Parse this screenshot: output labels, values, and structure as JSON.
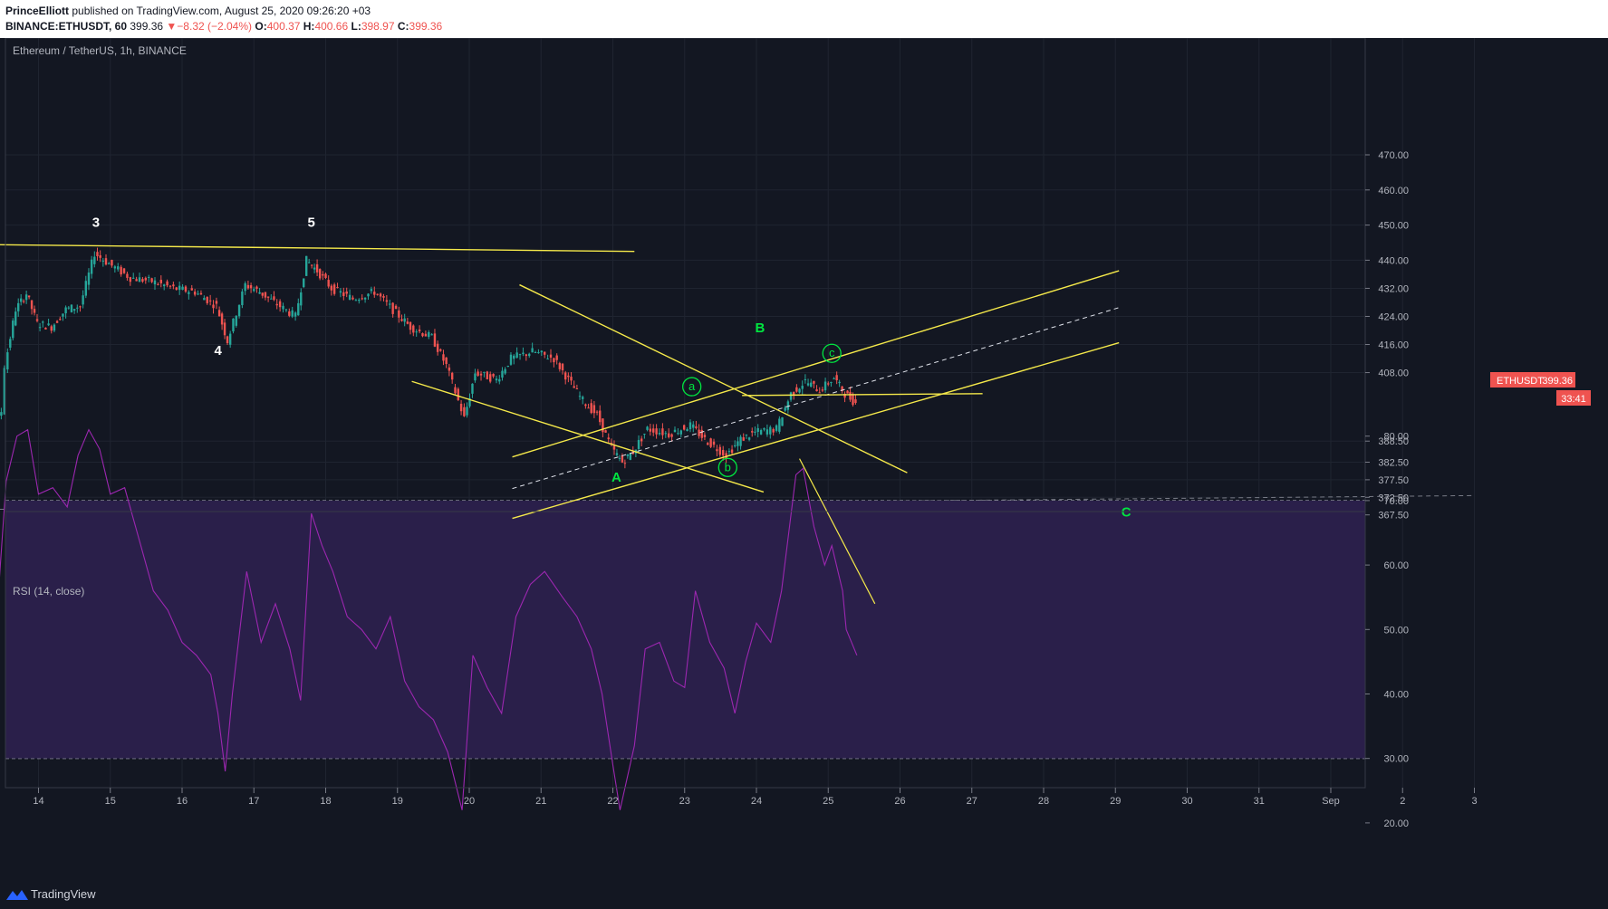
{
  "header": {
    "author": "PrinceElliott",
    "published_text": "published on TradingView.com, August 25, 2020 09:26:20 +03",
    "symbol": "BINANCE:ETHUSDT, 60",
    "last": "399.36",
    "change": "−8.32 (−2.04%)",
    "o_label": "O:",
    "o_val": "400.37",
    "h_label": "H:",
    "h_val": "400.66",
    "l_label": "L:",
    "l_val": "398.97",
    "c_label": "C:",
    "c_val": "399.36"
  },
  "chart_data": [
    {
      "type": "candlestick",
      "title": "Ethereum / TetherUS, 1h, BINANCE",
      "x_ticks": [
        "14",
        "15",
        "16",
        "17",
        "18",
        "19",
        "20",
        "21",
        "22",
        "23",
        "24",
        "25",
        "26",
        "27",
        "28",
        "29",
        "30",
        "31",
        "Sep",
        "2",
        "3"
      ],
      "y_ticks": [
        "470.00",
        "460.00",
        "450.00",
        "440.00",
        "432.00",
        "424.00",
        "416.00",
        "408.00",
        "388.50",
        "382.50",
        "377.50",
        "372.50",
        "367.50"
      ],
      "price_label": "ETHUSDT",
      "price_value": "399.36",
      "countdown": "33:41",
      "wave_labels": [
        {
          "text": "3",
          "date": "14.8",
          "price": 449.5,
          "color": "#ffffff"
        },
        {
          "text": "5",
          "date": "17.8",
          "price": 449.5,
          "color": "#ffffff"
        },
        {
          "text": "4",
          "date": "16.5",
          "price": 413.0,
          "color": "#ffffff"
        },
        {
          "text": "B",
          "date": "24.05",
          "price": 419.5,
          "color": "#00e640"
        },
        {
          "text": "A",
          "date": "22.05",
          "price": 377.0,
          "color": "#00e640"
        },
        {
          "text": "C",
          "date": "29.15",
          "price": 367.0,
          "color": "#00e640"
        }
      ],
      "circled_labels": [
        {
          "text": "a",
          "date": "23.1",
          "price": 404.0
        },
        {
          "text": "b",
          "date": "23.6",
          "price": 381.0
        },
        {
          "text": "c",
          "date": "25.05",
          "price": 413.5
        }
      ],
      "price_path": [
        {
          "date": "13.0",
          "price": 378.5
        },
        {
          "date": "13.05",
          "price": 386.0
        },
        {
          "date": "13.2",
          "price": 392.0
        },
        {
          "date": "13.35",
          "price": 391.0
        },
        {
          "date": "13.5",
          "price": 397.0
        },
        {
          "date": "13.55",
          "price": 410.0
        },
        {
          "date": "13.7",
          "price": 426.0
        },
        {
          "date": "13.85",
          "price": 430.5
        },
        {
          "date": "14.0",
          "price": 422.0
        },
        {
          "date": "14.2",
          "price": 421.0
        },
        {
          "date": "14.4",
          "price": 426.0
        },
        {
          "date": "14.6",
          "price": 427.0
        },
        {
          "date": "14.8",
          "price": 442.0
        },
        {
          "date": "15.0",
          "price": 439.0
        },
        {
          "date": "15.3",
          "price": 435.0
        },
        {
          "date": "15.6",
          "price": 434.0
        },
        {
          "date": "15.9",
          "price": 432.0
        },
        {
          "date": "16.2",
          "price": 431.0
        },
        {
          "date": "16.5",
          "price": 427.0
        },
        {
          "date": "16.65",
          "price": 417.0
        },
        {
          "date": "16.9",
          "price": 433.0
        },
        {
          "date": "17.1",
          "price": 431.0
        },
        {
          "date": "17.3",
          "price": 428.0
        },
        {
          "date": "17.6",
          "price": 424.0
        },
        {
          "date": "17.75",
          "price": 440.0
        },
        {
          "date": "17.9",
          "price": 437.0
        },
        {
          "date": "18.1",
          "price": 432.0
        },
        {
          "date": "18.4",
          "price": 429.0
        },
        {
          "date": "18.7",
          "price": 431.0
        },
        {
          "date": "19.0",
          "price": 425.0
        },
        {
          "date": "19.2",
          "price": 421.0
        },
        {
          "date": "19.5",
          "price": 418.0
        },
        {
          "date": "19.7",
          "price": 410.0
        },
        {
          "date": "19.95",
          "price": 395.0
        },
        {
          "date": "20.1",
          "price": 408.0
        },
        {
          "date": "20.4",
          "price": 406.0
        },
        {
          "date": "20.6",
          "price": 412.0
        },
        {
          "date": "20.9",
          "price": 414.0
        },
        {
          "date": "21.2",
          "price": 412.0
        },
        {
          "date": "21.4",
          "price": 406.0
        },
        {
          "date": "21.6",
          "price": 400.0
        },
        {
          "date": "21.8",
          "price": 396.0
        },
        {
          "date": "22.0",
          "price": 386.5
        },
        {
          "date": "22.15",
          "price": 382.5
        },
        {
          "date": "22.3",
          "price": 385.5
        },
        {
          "date": "22.5",
          "price": 392.0
        },
        {
          "date": "22.8",
          "price": 390.5
        },
        {
          "date": "23.1",
          "price": 393.0
        },
        {
          "date": "23.3",
          "price": 389.0
        },
        {
          "date": "23.6",
          "price": 384.5
        },
        {
          "date": "23.8",
          "price": 389.0
        },
        {
          "date": "24.0",
          "price": 391.0
        },
        {
          "date": "24.3",
          "price": 392.0
        },
        {
          "date": "24.5",
          "price": 402.0
        },
        {
          "date": "24.7",
          "price": 405.5
        },
        {
          "date": "24.9",
          "price": 403.0
        },
        {
          "date": "25.1",
          "price": 406.5
        },
        {
          "date": "25.25",
          "price": 402.0
        },
        {
          "date": "25.4",
          "price": 399.36
        }
      ],
      "trendlines": [
        {
          "from": {
            "date": "13.0",
            "price": 444.5
          },
          "to": {
            "date": "22.3",
            "price": 442.5
          },
          "style": "solid"
        },
        {
          "from": {
            "date": "20.7",
            "price": 433.0
          },
          "to": {
            "date": "26.1",
            "price": 379.5
          },
          "style": "solid"
        },
        {
          "from": {
            "date": "19.2",
            "price": 405.5
          },
          "to": {
            "date": "24.1",
            "price": 374.0
          },
          "style": "solid"
        },
        {
          "from": {
            "date": "20.6",
            "price": 384.0
          },
          "to": {
            "date": "29.05",
            "price": 437.0
          },
          "style": "solid"
        },
        {
          "from": {
            "date": "20.6",
            "price": 375.0
          },
          "to": {
            "date": "29.05",
            "price": 426.5
          },
          "style": "dashed"
        },
        {
          "from": {
            "date": "20.6",
            "price": 366.5
          },
          "to": {
            "date": "29.05",
            "price": 416.5
          },
          "style": "solid"
        },
        {
          "from": {
            "date": "23.8",
            "price": 401.5
          },
          "to": {
            "date": "27.15",
            "price": 402.0
          },
          "style": "solid"
        }
      ],
      "support_line": {
        "from": {
          "date": "13.0",
          "price": 369.0
        },
        "to": {
          "date": "34.0",
          "price": 373.0
        }
      }
    },
    {
      "type": "line",
      "title": "RSI (14, close)",
      "y_ticks": [
        "80.00",
        "70.00",
        "60.00",
        "50.00",
        "40.00",
        "30.00",
        "20.00"
      ],
      "band": [
        30,
        70
      ],
      "series": [
        {
          "values": [
            {
              "date": "13.0",
              "rsi": 48
            },
            {
              "date": "13.15",
              "rsi": 60
            },
            {
              "date": "13.3",
              "rsi": 55
            },
            {
              "date": "13.45",
              "rsi": 57
            },
            {
              "date": "13.55",
              "rsi": 73
            },
            {
              "date": "13.7",
              "rsi": 80
            },
            {
              "date": "13.85",
              "rsi": 81
            },
            {
              "date": "14.0",
              "rsi": 71
            },
            {
              "date": "14.2",
              "rsi": 72
            },
            {
              "date": "14.4",
              "rsi": 69
            },
            {
              "date": "14.55",
              "rsi": 77
            },
            {
              "date": "14.7",
              "rsi": 81
            },
            {
              "date": "14.85",
              "rsi": 78
            },
            {
              "date": "15.0",
              "rsi": 71
            },
            {
              "date": "15.2",
              "rsi": 72
            },
            {
              "date": "15.4",
              "rsi": 64
            },
            {
              "date": "15.6",
              "rsi": 56
            },
            {
              "date": "15.8",
              "rsi": 53
            },
            {
              "date": "16.0",
              "rsi": 48
            },
            {
              "date": "16.2",
              "rsi": 46
            },
            {
              "date": "16.4",
              "rsi": 43
            },
            {
              "date": "16.5",
              "rsi": 37
            },
            {
              "date": "16.6",
              "rsi": 28
            },
            {
              "date": "16.7",
              "rsi": 40
            },
            {
              "date": "16.9",
              "rsi": 59
            },
            {
              "date": "17.1",
              "rsi": 48
            },
            {
              "date": "17.3",
              "rsi": 54
            },
            {
              "date": "17.5",
              "rsi": 47
            },
            {
              "date": "17.65",
              "rsi": 39
            },
            {
              "date": "17.8",
              "rsi": 68
            },
            {
              "date": "17.95",
              "rsi": 63
            },
            {
              "date": "18.1",
              "rsi": 59
            },
            {
              "date": "18.3",
              "rsi": 52
            },
            {
              "date": "18.5",
              "rsi": 50
            },
            {
              "date": "18.7",
              "rsi": 47
            },
            {
              "date": "18.9",
              "rsi": 52
            },
            {
              "date": "19.1",
              "rsi": 42
            },
            {
              "date": "19.3",
              "rsi": 38
            },
            {
              "date": "19.5",
              "rsi": 36
            },
            {
              "date": "19.7",
              "rsi": 31
            },
            {
              "date": "19.9",
              "rsi": 22
            },
            {
              "date": "20.05",
              "rsi": 46
            },
            {
              "date": "20.25",
              "rsi": 41
            },
            {
              "date": "20.45",
              "rsi": 37
            },
            {
              "date": "20.65",
              "rsi": 52
            },
            {
              "date": "20.85",
              "rsi": 57
            },
            {
              "date": "21.05",
              "rsi": 59
            },
            {
              "date": "21.3",
              "rsi": 55
            },
            {
              "date": "21.5",
              "rsi": 52
            },
            {
              "date": "21.7",
              "rsi": 47
            },
            {
              "date": "21.85",
              "rsi": 40
            },
            {
              "date": "22.0",
              "rsi": 29
            },
            {
              "date": "22.1",
              "rsi": 22
            },
            {
              "date": "22.3",
              "rsi": 32
            },
            {
              "date": "22.45",
              "rsi": 47
            },
            {
              "date": "22.65",
              "rsi": 48
            },
            {
              "date": "22.85",
              "rsi": 42
            },
            {
              "date": "23.0",
              "rsi": 41
            },
            {
              "date": "23.15",
              "rsi": 56
            },
            {
              "date": "23.35",
              "rsi": 48
            },
            {
              "date": "23.55",
              "rsi": 44
            },
            {
              "date": "23.7",
              "rsi": 37
            },
            {
              "date": "23.85",
              "rsi": 45
            },
            {
              "date": "24.0",
              "rsi": 51
            },
            {
              "date": "24.2",
              "rsi": 48
            },
            {
              "date": "24.35",
              "rsi": 56
            },
            {
              "date": "24.55",
              "rsi": 74
            },
            {
              "date": "24.65",
              "rsi": 75
            },
            {
              "date": "24.8",
              "rsi": 66
            },
            {
              "date": "24.95",
              "rsi": 60
            },
            {
              "date": "25.05",
              "rsi": 63
            },
            {
              "date": "25.2",
              "rsi": 56
            },
            {
              "date": "25.25",
              "rsi": 50
            },
            {
              "date": "25.4",
              "rsi": 46
            }
          ]
        }
      ],
      "trendline": {
        "from": {
          "date": "24.6",
          "rsi": 76.5
        },
        "to": {
          "date": "25.65",
          "rsi": 54
        }
      }
    }
  ],
  "footer": {
    "brand": "TradingView"
  },
  "colors": {
    "bg": "#131722",
    "up": "#26a69a",
    "down": "#ef5350",
    "trend": "#f5e94a",
    "wave_green": "#00e640",
    "rsi": "#9c27b0",
    "rsi_band": "#2a1f4a"
  }
}
